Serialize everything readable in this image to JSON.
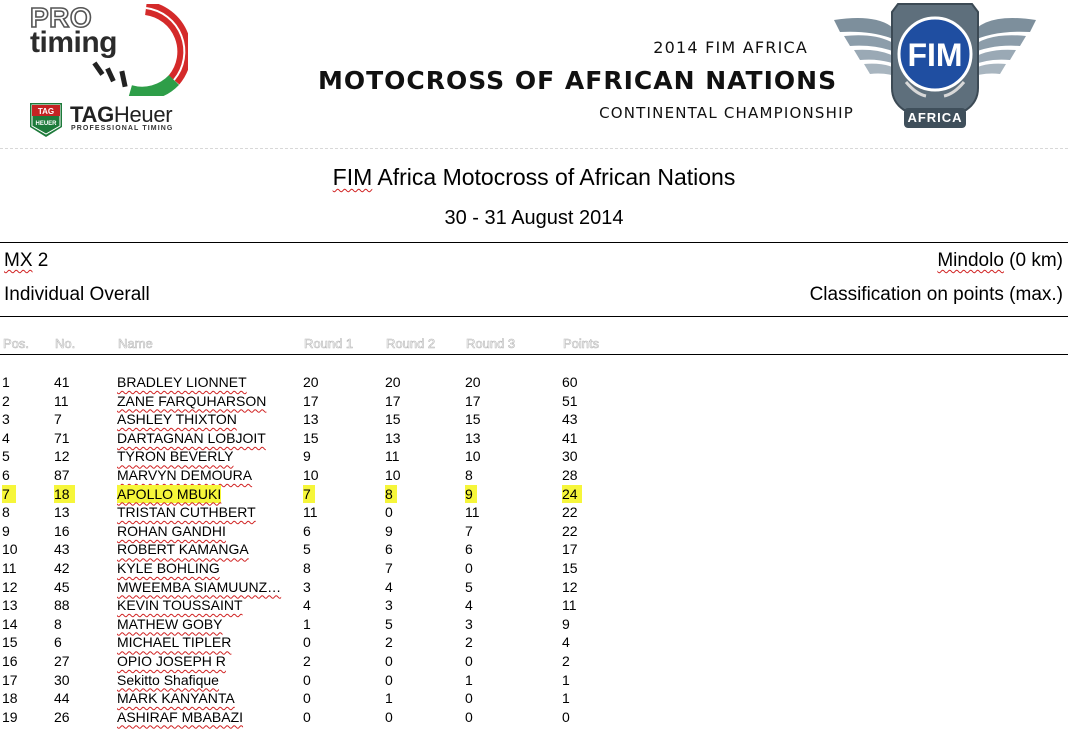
{
  "logos": {
    "protiming": {
      "line1": "PRO",
      "line2": "timing",
      "accent_red": "#d42a2a",
      "accent_green": "#2e9e48"
    },
    "tagheuer": {
      "shield_text": "TAG HEUER",
      "brand_bold": "TAG",
      "brand_light": "Heuer",
      "tagline": "PROFESSIONAL TIMING"
    },
    "fim": {
      "text": "FIM",
      "region": "AFRICA"
    }
  },
  "event_header": {
    "line1": "2014 FIM AFRICA",
    "line2": "MOTOCROSS OF AFRICAN NATIONS",
    "line3": "CONTINENTAL CHAMPIONSHIP"
  },
  "title": {
    "part1": "FIM",
    "part2": " Africa Motocross of African Nations"
  },
  "date": "30 - 31 August 2014",
  "class": {
    "part1": "MX",
    "part2": " 2"
  },
  "venue": {
    "part1": "Mindolo",
    "part2": " (0 km)"
  },
  "subtitle": "Individual Overall",
  "classification": "Classification on points (max.)",
  "columns": {
    "pos": "Pos.",
    "no": "No.",
    "name": "Name",
    "r1": "Round 1",
    "r2": "Round 2",
    "r3": "Round 3",
    "points": "Points"
  },
  "highlight_color": "#f6f63a",
  "rows": [
    {
      "pos": "1",
      "no": "41",
      "name": "BRADLEY LIONNET",
      "r1": "20",
      "r2": "20",
      "r3": "20",
      "points": "60",
      "highlight": false
    },
    {
      "pos": "2",
      "no": "11",
      "name": "ZANE FARQUHARSON",
      "r1": "17",
      "r2": "17",
      "r3": "17",
      "points": "51",
      "highlight": false
    },
    {
      "pos": "3",
      "no": "7",
      "name": "ASHLEY THIXTON",
      "r1": "13",
      "r2": "15",
      "r3": "15",
      "points": "43",
      "highlight": false
    },
    {
      "pos": "4",
      "no": "71",
      "name": "DARTAGNAN LOBJOIT",
      "r1": "15",
      "r2": "13",
      "r3": "13",
      "points": "41",
      "highlight": false
    },
    {
      "pos": "5",
      "no": "12",
      "name": "TYRON BEVERLY",
      "r1": "9",
      "r2": "11",
      "r3": "10",
      "points": "30",
      "highlight": false
    },
    {
      "pos": "6",
      "no": "87",
      "name": "MARVYN DEMOURA",
      "r1": "10",
      "r2": "10",
      "r3": "8",
      "points": "28",
      "highlight": false
    },
    {
      "pos": "7",
      "no": "18",
      "name": "APOLLO MBUKI",
      "r1": "7",
      "r2": "8",
      "r3": "9",
      "points": "24",
      "highlight": true
    },
    {
      "pos": "8",
      "no": "13",
      "name": "TRISTAN CUTHBERT",
      "r1": "11",
      "r2": "0",
      "r3": "11",
      "points": "22",
      "highlight": false
    },
    {
      "pos": "9",
      "no": "16",
      "name": "ROHAN GANDHI",
      "r1": "6",
      "r2": "9",
      "r3": "7",
      "points": "22",
      "highlight": false
    },
    {
      "pos": "10",
      "no": "43",
      "name": "ROBERT KAMANGA",
      "r1": "5",
      "r2": "6",
      "r3": "6",
      "points": "17",
      "highlight": false
    },
    {
      "pos": "11",
      "no": "42",
      "name": "KYLE BOHLING",
      "r1": "8",
      "r2": "7",
      "r3": "0",
      "points": "15",
      "highlight": false
    },
    {
      "pos": "12",
      "no": "45",
      "name": "MWEEMBA  SIAMUUNZ…",
      "r1": "3",
      "r2": "4",
      "r3": "5",
      "points": "12",
      "highlight": false
    },
    {
      "pos": "13",
      "no": "88",
      "name": "KEVIN TOUSSAINT",
      "r1": "4",
      "r2": "3",
      "r3": "4",
      "points": "11",
      "highlight": false
    },
    {
      "pos": "14",
      "no": "8",
      "name": "MATHEW GOBY",
      "r1": "1",
      "r2": "5",
      "r3": "3",
      "points": "9",
      "highlight": false
    },
    {
      "pos": "15",
      "no": "6",
      "name": "MICHAEL TIPLER",
      "r1": "0",
      "r2": "2",
      "r3": "2",
      "points": "4",
      "highlight": false
    },
    {
      "pos": "16",
      "no": "27",
      "name": "OPIO JOSEPH R",
      "r1": "2",
      "r2": "0",
      "r3": "0",
      "points": "2",
      "highlight": false
    },
    {
      "pos": "17",
      "no": "30",
      "name": "Sekitto Shafique",
      "r1": "0",
      "r2": "0",
      "r3": "1",
      "points": "1",
      "highlight": false
    },
    {
      "pos": "18",
      "no": "44",
      "name": "MARK KANYANTA",
      "r1": "0",
      "r2": "1",
      "r3": "0",
      "points": "1",
      "highlight": false
    },
    {
      "pos": "19",
      "no": "26",
      "name": "ASHIRAF MBABAZI",
      "r1": "0",
      "r2": "0",
      "r3": "0",
      "points": "0",
      "highlight": false
    }
  ]
}
